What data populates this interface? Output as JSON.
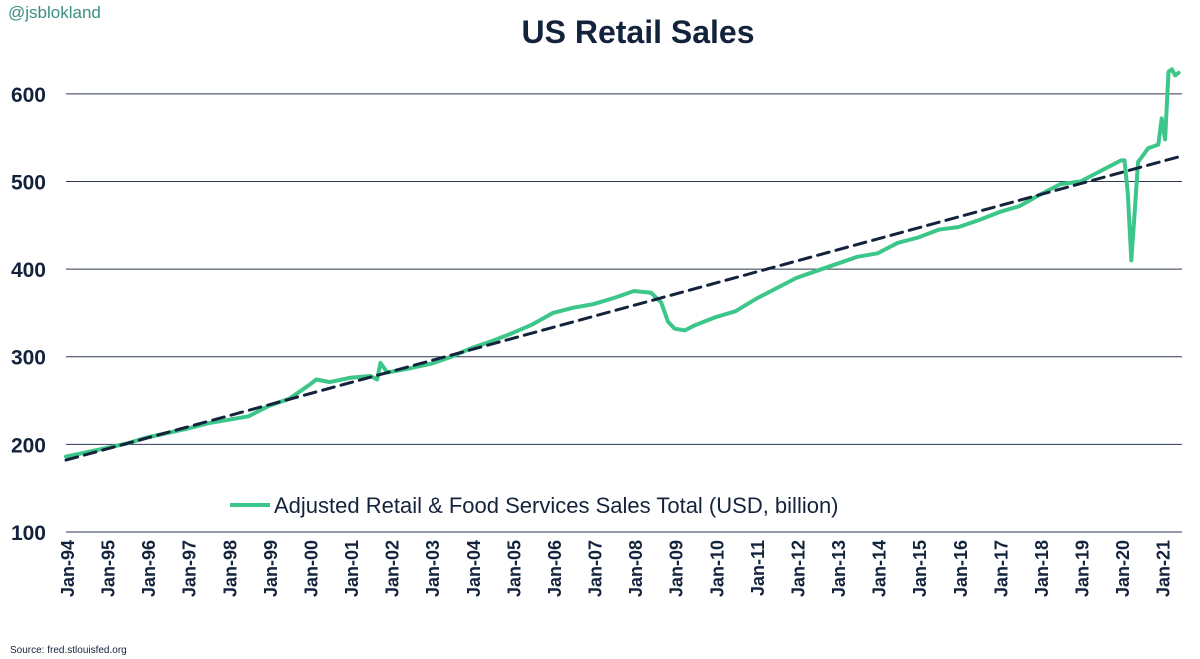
{
  "header": {
    "handle": "@jsblokland"
  },
  "footer": {
    "source": "Source: fred.stlouisfed.org"
  },
  "colors": {
    "series": "#3cc68a",
    "trend": "#14233c",
    "grid": "#2c3a4f",
    "text": "#14233c",
    "handle": "#3a8f82"
  },
  "chart_data": {
    "type": "line",
    "title": "US Retail Sales",
    "xlabel": "",
    "ylabel": "",
    "ylim": [
      100,
      650
    ],
    "yticks": [
      100,
      200,
      300,
      400,
      500,
      600
    ],
    "grid": true,
    "legend_position": "bottom-center",
    "x_tick_labels": [
      "Jan-94",
      "Jan-95",
      "Jan-96",
      "Jan-97",
      "Jan-98",
      "Jan-99",
      "Jan-00",
      "Jan-01",
      "Jan-02",
      "Jan-03",
      "Jan-04",
      "Jan-05",
      "Jan-06",
      "Jan-07",
      "Jan-08",
      "Jan-09",
      "Jan-10",
      "Jan-11",
      "Jan-12",
      "Jan-13",
      "Jan-14",
      "Jan-15",
      "Jan-16",
      "Jan-17",
      "Jan-18",
      "Jan-19",
      "Jan-20",
      "Jan-21"
    ],
    "series": [
      {
        "name": "Adjusted Retail & Food Services Sales Total (USD, billion)",
        "style": "solid",
        "points": [
          [
            "1994-01",
            186
          ],
          [
            "1994-07",
            191
          ],
          [
            "1995-01",
            196
          ],
          [
            "1995-07",
            201
          ],
          [
            "1996-01",
            208
          ],
          [
            "1996-07",
            213
          ],
          [
            "1997-01",
            218
          ],
          [
            "1997-07",
            224
          ],
          [
            "1998-01",
            228
          ],
          [
            "1998-07",
            232
          ],
          [
            "1999-01",
            244
          ],
          [
            "1999-07",
            252
          ],
          [
            "2000-01",
            268
          ],
          [
            "2000-03",
            274
          ],
          [
            "2000-07",
            271
          ],
          [
            "2001-01",
            276
          ],
          [
            "2001-07",
            278
          ],
          [
            "2001-09",
            274
          ],
          [
            "2001-10",
            293
          ],
          [
            "2001-12",
            282
          ],
          [
            "2002-07",
            287
          ],
          [
            "2003-01",
            292
          ],
          [
            "2003-07",
            300
          ],
          [
            "2004-01",
            310
          ],
          [
            "2004-07",
            318
          ],
          [
            "2005-01",
            327
          ],
          [
            "2005-07",
            337
          ],
          [
            "2006-01",
            350
          ],
          [
            "2006-07",
            356
          ],
          [
            "2007-01",
            360
          ],
          [
            "2007-07",
            367
          ],
          [
            "2008-01",
            375
          ],
          [
            "2008-06",
            373
          ],
          [
            "2008-09",
            362
          ],
          [
            "2008-11",
            340
          ],
          [
            "2009-01",
            332
          ],
          [
            "2009-04",
            330
          ],
          [
            "2009-07",
            336
          ],
          [
            "2010-01",
            345
          ],
          [
            "2010-07",
            352
          ],
          [
            "2011-01",
            366
          ],
          [
            "2011-07",
            378
          ],
          [
            "2012-01",
            390
          ],
          [
            "2012-07",
            398
          ],
          [
            "2013-01",
            406
          ],
          [
            "2013-07",
            414
          ],
          [
            "2014-01",
            418
          ],
          [
            "2014-07",
            430
          ],
          [
            "2015-01",
            436
          ],
          [
            "2015-07",
            445
          ],
          [
            "2016-01",
            448
          ],
          [
            "2016-07",
            456
          ],
          [
            "2017-01",
            465
          ],
          [
            "2017-07",
            472
          ],
          [
            "2018-01",
            485
          ],
          [
            "2018-07",
            497
          ],
          [
            "2019-01",
            500
          ],
          [
            "2019-07",
            512
          ],
          [
            "2020-01",
            524
          ],
          [
            "2020-02",
            524
          ],
          [
            "2020-03",
            485
          ],
          [
            "2020-04",
            410
          ],
          [
            "2020-05",
            465
          ],
          [
            "2020-06",
            522
          ],
          [
            "2020-09",
            538
          ],
          [
            "2020-12",
            542
          ],
          [
            "2021-01",
            572
          ],
          [
            "2021-02",
            548
          ],
          [
            "2021-03",
            625
          ],
          [
            "2021-04",
            628
          ],
          [
            "2021-05",
            621
          ],
          [
            "2021-06",
            624
          ]
        ]
      },
      {
        "name": "",
        "style": "dashed",
        "points": [
          [
            "1994-01",
            182
          ],
          [
            "2021-06",
            528
          ]
        ]
      }
    ]
  }
}
